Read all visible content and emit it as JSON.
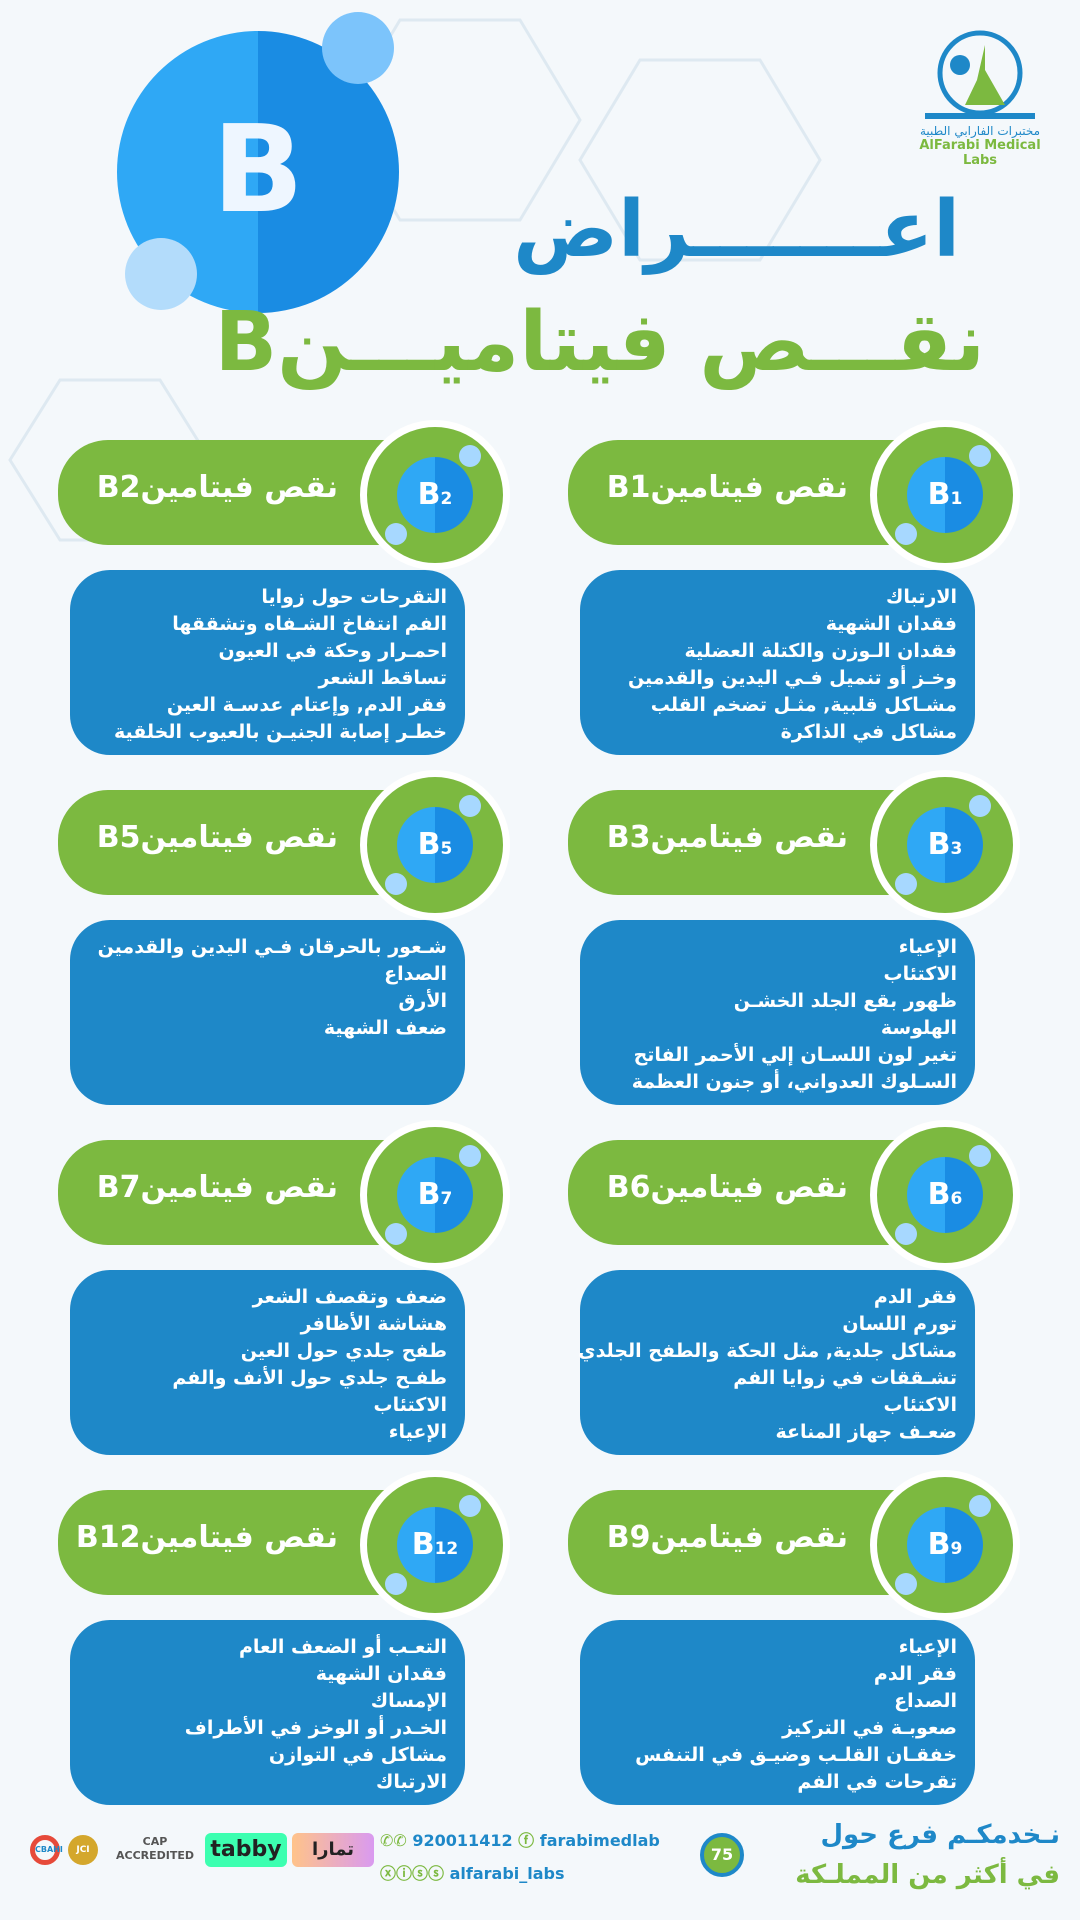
{
  "header": {
    "title_line1": "اعـــــــراض",
    "title_line2": "نقـــص فيتاميـــنB",
    "big_letter": "B"
  },
  "logo": {
    "arabic": "مختبرات الفارابي الطبية",
    "english": "AlFarabi Medical Labs"
  },
  "colors": {
    "blue": "#1e88c8",
    "green": "#7cb940",
    "light_blue": "#2fa8f5"
  },
  "cards": [
    {
      "title": "نقص  فيتامينB1",
      "badge": "B",
      "sub": "1",
      "items": [
        "الارتباك",
        "فقدان  الشهية",
        "فقدان الـوزن والكتلة العضلية",
        "وخـز أو تنميل فـي اليدين والقدمين",
        "مشـاكل قلبية, مثـل تضخم القلب",
        "مشاكل في الذاكرة"
      ]
    },
    {
      "title": "نقص  فيتامينB2",
      "badge": "B",
      "sub": "2",
      "items": [
        "التقرحات حول زوايا",
        "الفم انتفاخ الشـفاه وتشققها",
        "احمـرار وحكة في العيون",
        "تساقط الشعر",
        "فقر الدم, وإعتام عدسـة العين",
        "خطـر إصابة الجنيـن بالعيوب الخلقية"
      ]
    },
    {
      "title": "نقص  فيتامينB3",
      "badge": "B",
      "sub": "3",
      "items": [
        "الإعياء",
        "الاكتئاب",
        "ظهور بقع الجلد الخشـن",
        "الهلوسة",
        "تغير لون اللسـان إلي الأحمر الفاتح",
        "السـلوك العدواني، أو جنون العظمة"
      ]
    },
    {
      "title": "نقص  فيتامينB5",
      "badge": "B",
      "sub": "5",
      "items": [
        "شـعور بالحرقان فـي اليدين والقدمين",
        "الصداع",
        "الأرق",
        "ضعف  الشهية"
      ]
    },
    {
      "title": "نقص  فيتامينB6",
      "badge": "B",
      "sub": "6",
      "items": [
        "فقر الدم",
        "تورم اللسان",
        "مشاكل جلدية, مثل الحكة والطفح الجلدي",
        "تشـققات في زوايا الفم",
        "الاكتئاب",
        "ضعـف جهاز المناعة"
      ]
    },
    {
      "title": "نقص  فيتامينB7",
      "badge": "B",
      "sub": "7",
      "items": [
        "ضعف وتقصف الشعر",
        "هشاشة الأظافر",
        "طفح جلدي حول العين",
        "طفـح جلدي حول الأنف والفم",
        "الاكتئاب",
        "الإعياء"
      ]
    },
    {
      "title": "نقص  فيتامينB9",
      "badge": "B",
      "sub": "9",
      "items": [
        "الإعياء",
        "فقر الدم",
        "الصداع",
        "صعوبـة في التركيز",
        "خفقـان القلـب وضيـق في التنفس",
        "تقرحات في الفم"
      ]
    },
    {
      "title": "نقص  فيتامينB12",
      "badge": "B",
      "sub": "12",
      "items": [
        "التعـب أو الضعف العام",
        "فقدان  الشهية",
        "الإمساك",
        "الخـدر أو الوخز في الأطراف",
        "مشاكل في  التوازن",
        "الارتباك"
      ]
    }
  ],
  "footer": {
    "slogan_line1": "نـخدمكـم   فرع حول",
    "slogan_line2": "في أكثر من   المملـكة",
    "branches": "75",
    "phone": "920011412",
    "handle1": "farabimedlab",
    "handle2": "alfarabi_labs",
    "badges": [
      "CBAHI",
      "JCI",
      "CAP ACCREDITED",
      "tabby",
      "تمارا"
    ]
  }
}
